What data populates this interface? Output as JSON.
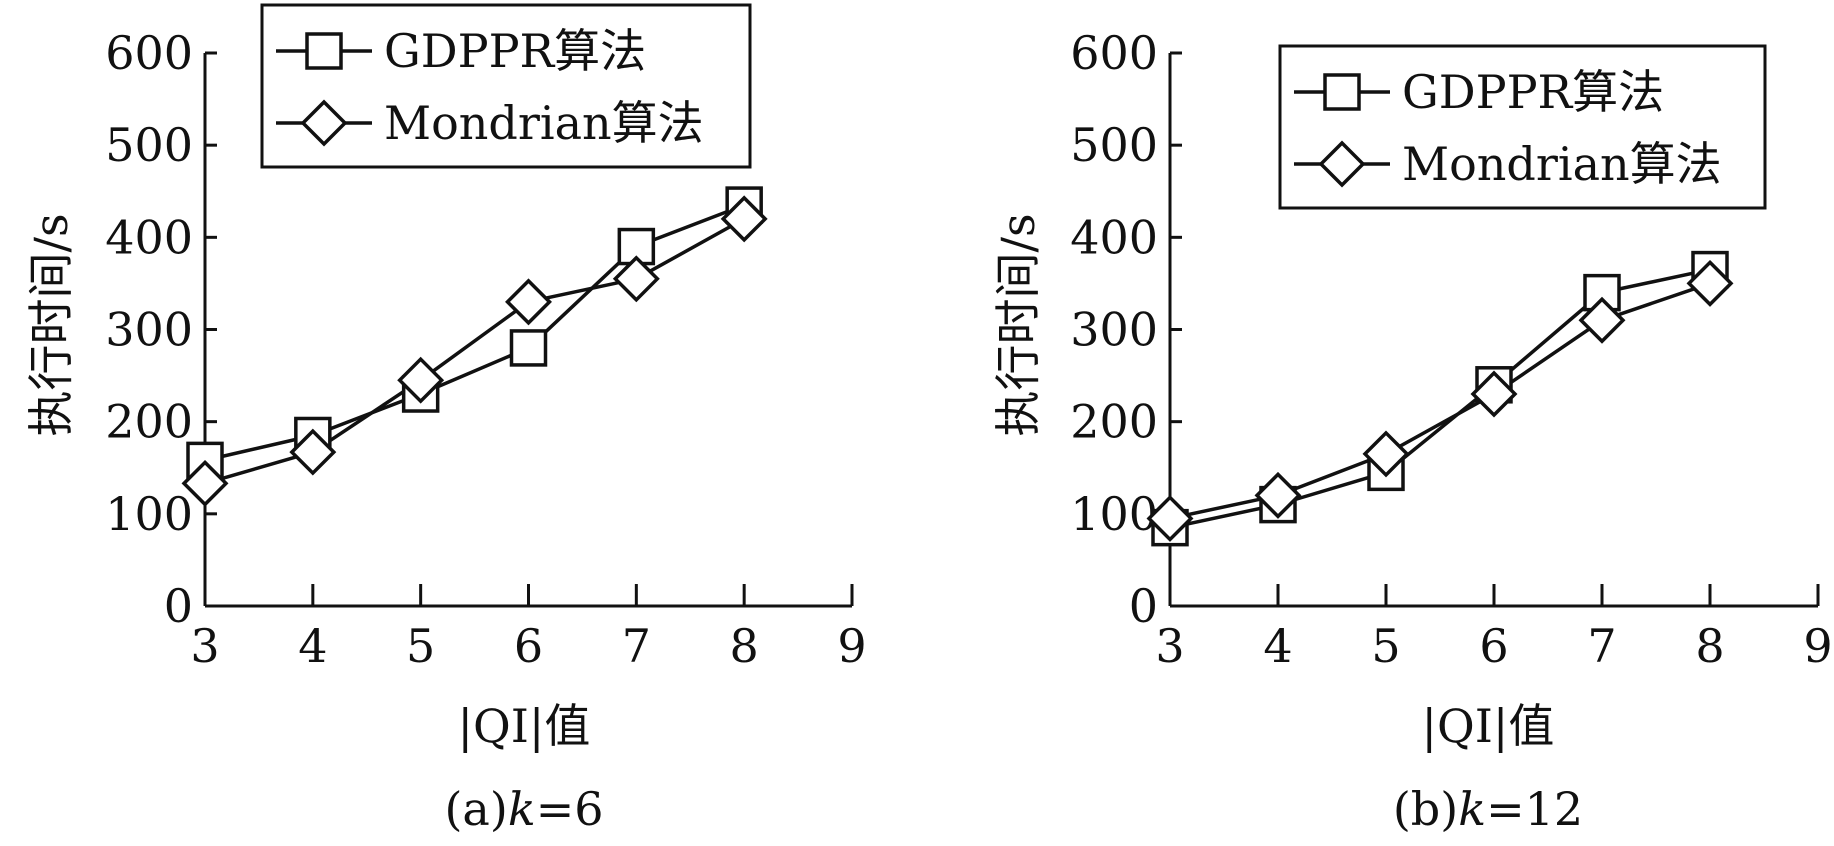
{
  "chart_data": [
    {
      "type": "line",
      "caption_prefix": "(a)",
      "caption_k": "k",
      "caption_suffix": "=6",
      "xlabel": "|QI|值",
      "ylabel": "执行时间/s",
      "xlim": [
        3,
        9
      ],
      "ylim": [
        0,
        600
      ],
      "x_ticks": [
        "3",
        "4",
        "5",
        "6",
        "7",
        "8",
        "9"
      ],
      "y_ticks": [
        "0",
        "100",
        "200",
        "300",
        "400",
        "500",
        "600"
      ],
      "grid": false,
      "legend_position": "top-center",
      "series": [
        {
          "name": "GDPPR算法",
          "marker": "square",
          "x": [
            3,
            4,
            5,
            6,
            7,
            8
          ],
          "values": [
            158,
            185,
            230,
            280,
            390,
            435
          ]
        },
        {
          "name": "Mondrian算法",
          "marker": "diamond",
          "x": [
            3,
            4,
            5,
            6,
            7,
            8
          ],
          "values": [
            133,
            167,
            245,
            330,
            355,
            420
          ]
        }
      ]
    },
    {
      "type": "line",
      "caption_prefix": "(b)",
      "caption_k": "k",
      "caption_suffix": "=12",
      "xlabel": "|QI|值",
      "ylabel": "执行时间/s",
      "xlim": [
        3,
        9
      ],
      "ylim": [
        0,
        600
      ],
      "x_ticks": [
        "3",
        "4",
        "5",
        "6",
        "7",
        "8",
        "9"
      ],
      "y_ticks": [
        "0",
        "100",
        "200",
        "300",
        "400",
        "500",
        "600"
      ],
      "grid": false,
      "legend_position": "top-right",
      "series": [
        {
          "name": "GDPPR算法",
          "marker": "square",
          "x": [
            3,
            4,
            5,
            6,
            7,
            8
          ],
          "values": [
            85,
            110,
            145,
            240,
            340,
            365
          ]
        },
        {
          "name": "Mondrian算法",
          "marker": "diamond",
          "x": [
            3,
            4,
            5,
            6,
            7,
            8
          ],
          "values": [
            95,
            120,
            165,
            230,
            310,
            350
          ]
        }
      ]
    }
  ],
  "colors": {
    "line": "#111111",
    "background": "#ffffff"
  }
}
